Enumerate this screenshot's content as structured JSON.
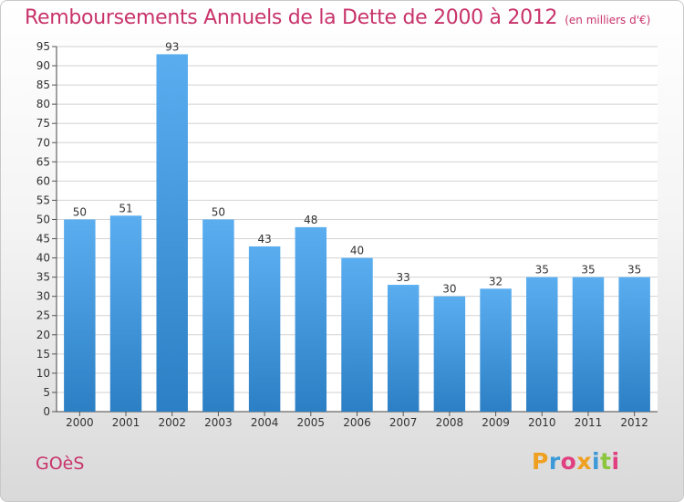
{
  "header": {
    "title": "Remboursements Annuels de la Dette de 2000 à 2012",
    "subtitle": "(en milliers d'€)"
  },
  "footer": {
    "commune": "GOèS",
    "brand": "Proxiti"
  },
  "colors": {
    "title": "#c8336a",
    "bar_top": "#5aaef0",
    "bar_bottom": "#2c7fc4",
    "brand_letters": [
      "#f0a020",
      "#3c9ad8",
      "#e04080",
      "#f0a020",
      "#3c9ad8",
      "#8cc63f",
      "#e04080"
    ]
  },
  "chart_data": {
    "type": "bar",
    "categories": [
      "2000",
      "2001",
      "2002",
      "2003",
      "2004",
      "2005",
      "2006",
      "2007",
      "2008",
      "2009",
      "2010",
      "2011",
      "2012"
    ],
    "values": [
      50,
      51,
      93,
      50,
      43,
      48,
      40,
      33,
      30,
      32,
      35,
      35,
      35
    ],
    "ylim": [
      0,
      95
    ],
    "ytick_step": 5,
    "grid": true,
    "data_labels": true
  }
}
